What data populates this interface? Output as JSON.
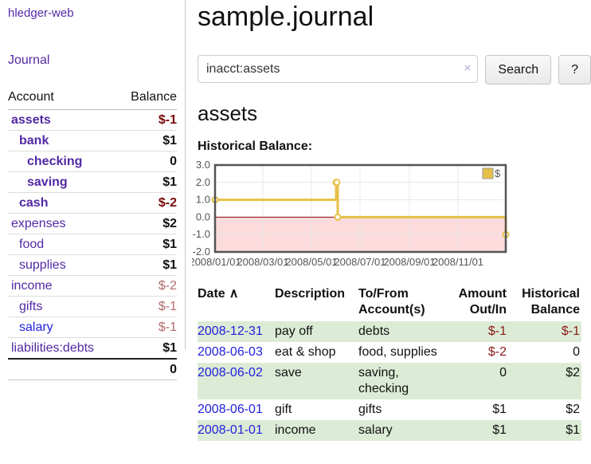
{
  "colors": {
    "link_purple": "#5229a3",
    "link_blue": "#2222dd",
    "neg_strong": "#760707",
    "neg_register": "#8b1a1a",
    "neg_muted": "#b36b6b",
    "row_green": "#dcebd5",
    "chart_line": "#e6c148",
    "chart_fill_negative": "#fbdbdb",
    "zero_line": "#8b0000",
    "plot_border": "#545454",
    "gridline": "#e7e7e7"
  },
  "app_title": "hledger-web",
  "sidebar": {
    "journal_link": "Journal",
    "accounts_table": {
      "col_account": "Account",
      "col_balance": "Balance",
      "rows": [
        {
          "name": "assets",
          "balance": "$-1",
          "depth": 1,
          "bold": true,
          "muted": false,
          "unvisited": false
        },
        {
          "name": "bank",
          "balance": "$1",
          "depth": 2,
          "bold": true,
          "muted": false,
          "unvisited": false
        },
        {
          "name": "checking",
          "balance": "0",
          "depth": 3,
          "bold": true,
          "muted": false,
          "unvisited": false
        },
        {
          "name": "saving",
          "balance": "$1",
          "depth": 3,
          "bold": true,
          "muted": false,
          "unvisited": false
        },
        {
          "name": "cash",
          "balance": "$-2",
          "depth": 2,
          "bold": true,
          "muted": false,
          "unvisited": false
        },
        {
          "name": "expenses",
          "balance": "$2",
          "depth": 1,
          "bold": false,
          "muted": false,
          "unvisited": false
        },
        {
          "name": "food",
          "balance": "$1",
          "depth": 2,
          "bold": false,
          "muted": false,
          "unvisited": false
        },
        {
          "name": "supplies",
          "balance": "$1",
          "depth": 2,
          "bold": false,
          "muted": false,
          "unvisited": false
        },
        {
          "name": "income",
          "balance": "$-2",
          "depth": 1,
          "bold": false,
          "muted": true,
          "unvisited": false
        },
        {
          "name": "gifts",
          "balance": "$-1",
          "depth": 2,
          "bold": false,
          "muted": true,
          "unvisited": false
        },
        {
          "name": "salary",
          "balance": "$-1",
          "depth": 2,
          "bold": false,
          "muted": true,
          "unvisited": true
        },
        {
          "name": "liabilities:debts",
          "balance": "$1",
          "depth": 1,
          "bold": false,
          "muted": false,
          "unvisited": false
        }
      ],
      "total": "0"
    }
  },
  "main": {
    "title": "sample.journal",
    "search": {
      "value": "inacct:assets",
      "clear_icon": "×",
      "search_button": "Search",
      "help_button": "?"
    },
    "account_heading": "assets",
    "chart_title": "Historical Balance:"
  },
  "chart_data": {
    "type": "line",
    "step": true,
    "title": "Historical Balance",
    "x_range": [
      "2008-01-01",
      "2008-12-31"
    ],
    "ylim": [
      -2.0,
      3.0
    ],
    "yticks": [
      {
        "label": "3.0",
        "value": 3
      },
      {
        "label": "2.0",
        "value": 2
      },
      {
        "label": "1.0",
        "value": 1
      },
      {
        "label": "0.0",
        "value": 0
      },
      {
        "label": "-1.0",
        "value": -1
      },
      {
        "label": "-2.0",
        "value": -2
      }
    ],
    "xticks": [
      {
        "label": "2008/01/01",
        "date": "2008-01-01"
      },
      {
        "label": "2008/03/01",
        "date": "2008-03-01"
      },
      {
        "label": "2008/05/01",
        "date": "2008-05-01"
      },
      {
        "label": "2008/07/01",
        "date": "2008-07-01"
      },
      {
        "label": "2008/09/01",
        "date": "2008-09-01"
      },
      {
        "label": "2008/11/01",
        "date": "2008-11-01"
      }
    ],
    "series": [
      {
        "name": "$",
        "points": [
          {
            "date": "2008-01-01",
            "value": 1
          },
          {
            "date": "2008-06-01",
            "value": 2
          },
          {
            "date": "2008-06-02",
            "value": 2
          },
          {
            "date": "2008-06-03",
            "value": 0
          },
          {
            "date": "2008-12-31",
            "value": -1
          }
        ]
      }
    ],
    "legend": {
      "label": "$",
      "position": "top-right"
    },
    "grid": true,
    "negative_region_shaded": true
  },
  "register": {
    "headers": {
      "date": "Date",
      "sort_icon": "∧",
      "description": "Description",
      "accounts": "To/From Account(s)",
      "amount": "Amount Out/In",
      "balance": "Historical Balance"
    },
    "rows": [
      {
        "date": "2008-12-31",
        "description": "pay off",
        "accounts": "debts",
        "amount": "$-1",
        "balance": "$-1"
      },
      {
        "date": "2008-06-03",
        "description": "eat & shop",
        "accounts": "food, supplies",
        "amount": "$-2",
        "balance": "0"
      },
      {
        "date": "2008-06-02",
        "description": "save",
        "accounts": "saving, checking",
        "amount": "0",
        "balance": "$2"
      },
      {
        "date": "2008-06-01",
        "description": "gift",
        "accounts": "gifts",
        "amount": "$1",
        "balance": "$2"
      },
      {
        "date": "2008-01-01",
        "description": "income",
        "accounts": "salary",
        "amount": "$1",
        "balance": "$1"
      }
    ]
  }
}
